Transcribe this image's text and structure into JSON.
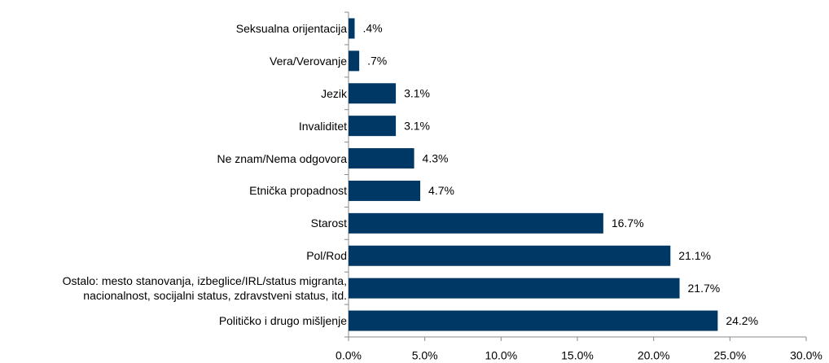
{
  "chart_data": {
    "type": "bar",
    "orientation": "horizontal",
    "categories": [
      "Seksualna orijentacija",
      "Vera/Verovanje",
      "Jezik",
      "Invaliditet",
      "Ne znam/Nema odgovora",
      "Etnička propadnost",
      "Starost",
      "Pol/Rod",
      "Ostalo: mesto stanovanja, izbeglice/IRL/status migranta,\nnacionalnost, socijalni status, zdravstveni status, itd.",
      "Političko i drugo mišljenje"
    ],
    "values": [
      0.4,
      0.7,
      3.1,
      3.1,
      4.3,
      4.7,
      16.7,
      21.1,
      21.7,
      24.2
    ],
    "value_labels": [
      ".4%",
      ".7%",
      "3.1%",
      "3.1%",
      "4.3%",
      "4.7%",
      "16.7%",
      "21.1%",
      "21.7%",
      "24.2%"
    ],
    "color": "#003865",
    "xlim": [
      0,
      30
    ],
    "xticks": [
      {
        "value": 0,
        "label": "0.0%"
      },
      {
        "value": 5,
        "label": "5.0%"
      },
      {
        "value": 10,
        "label": "10.0%"
      },
      {
        "value": 15,
        "label": "15.0%"
      },
      {
        "value": 20,
        "label": "20.0%"
      },
      {
        "value": 25,
        "label": "25.0%"
      },
      {
        "value": 30,
        "label": "30.0%"
      }
    ]
  }
}
